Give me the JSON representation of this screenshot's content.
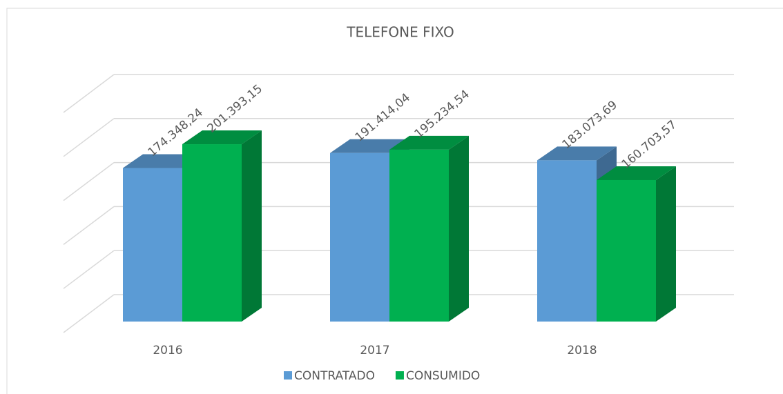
{
  "chart_data": {
    "type": "bar3d",
    "title": "TELEFONE FIXO",
    "categories": [
      "2016",
      "2017",
      "2018"
    ],
    "series": [
      {
        "name": "CONTRATADO",
        "color": "#5b9bd5",
        "values": [
          174348.24,
          191414.04,
          183073.69
        ],
        "value_labels": [
          "174.348,24",
          "191.414,04",
          "183.073,69"
        ]
      },
      {
        "name": "CONSUMIDO",
        "color": "#00b050",
        "values": [
          201393.15,
          195234.54,
          160703.57
        ],
        "value_labels": [
          "201.393,15",
          "195.234,54",
          "160.703,57"
        ]
      }
    ],
    "ylim": [
      0,
      250000
    ],
    "yticks": [
      0,
      50000,
      100000,
      150000,
      200000,
      250000
    ],
    "grid": true,
    "legend": "bottom"
  }
}
